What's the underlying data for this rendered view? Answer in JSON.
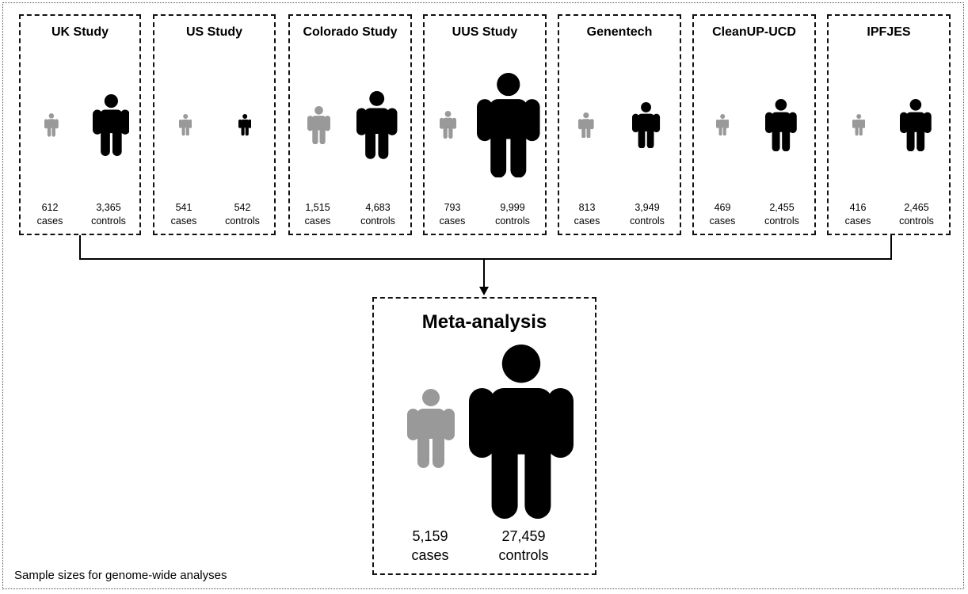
{
  "studies": [
    {
      "title": "UK Study",
      "cases": "612",
      "controls": "3,365",
      "case_scale": 0.38,
      "control_scale": 1.0
    },
    {
      "title": "US Study",
      "cases": "541",
      "controls": "542",
      "case_scale": 0.35,
      "control_scale": 0.35
    },
    {
      "title": "Colorado Study",
      "cases": "1,515",
      "controls": "4,683",
      "case_scale": 0.62,
      "control_scale": 1.1
    },
    {
      "title": "UUS Study",
      "cases": "793",
      "controls": "9,999",
      "case_scale": 0.45,
      "control_scale": 1.7
    },
    {
      "title": "Genentech",
      "cases": "813",
      "controls": "3,949",
      "case_scale": 0.42,
      "control_scale": 0.75
    },
    {
      "title": "CleanUP-UCD",
      "cases": "469",
      "controls": "2,455",
      "case_scale": 0.35,
      "control_scale": 0.85
    },
    {
      "title": "IPFJES",
      "cases": "416",
      "controls": "2,465",
      "case_scale": 0.35,
      "control_scale": 0.85
    }
  ],
  "labels": {
    "cases": "cases",
    "controls": "controls"
  },
  "meta": {
    "title": "Meta-analysis",
    "cases": "5,159",
    "controls": "27,459"
  },
  "footer": "Sample sizes for genome-wide analyses",
  "colors": {
    "case": "#999999",
    "control": "#000000",
    "border": "#111111"
  },
  "icons": {
    "case": "person-icon",
    "control": "person-icon"
  }
}
